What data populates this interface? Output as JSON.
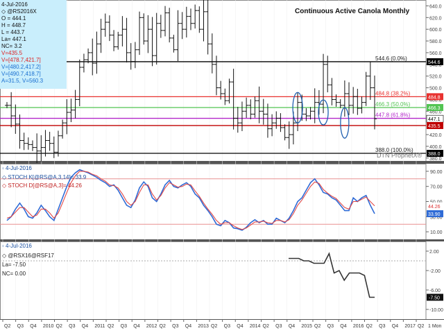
{
  "title": "Continuous Active Canola Monthly",
  "watermark": "DTN ProphetX®",
  "corner_label": "1 Mon",
  "info_panel": {
    "date": "4-Jul-2016",
    "symbol": "◇ @RS2016X",
    "lines": [
      "O = 444.1",
      "H = 448.7",
      "L = 443.7",
      "La= 447.1",
      "NC= 3.2",
      "V=435.5",
      "V=[478.7,421.7]",
      "V=[480.2,417.2]",
      "V=[490.7,418.7]",
      "A=31.5, V=560.3"
    ]
  },
  "chart_data": [
    {
      "type": "ohlc",
      "panel": "price",
      "title": "Continuous Active Canola Monthly",
      "x_ticks": [
        "Q2",
        "Q3",
        "Q4",
        "2010",
        "Q2",
        "Q3",
        "Q4",
        "2011",
        "Q2",
        "Q3",
        "Q4",
        "2012",
        "Q2",
        "Q3",
        "Q4",
        "2013",
        "Q2",
        "Q3",
        "Q4",
        "2014",
        "Q2",
        "Q3",
        "Q4",
        "2015",
        "Q2",
        "Q3",
        "Q4",
        "2016",
        "Q2",
        "Q3",
        "Q4",
        "2017",
        "Q2"
      ],
      "y_ticks": [
        640,
        620,
        600,
        580,
        560,
        540,
        520,
        500,
        480,
        460,
        420,
        400,
        380
      ],
      "ylim": [
        375,
        650
      ],
      "close_approx": [
        470,
        452,
        438,
        410,
        405,
        403,
        398,
        392,
        398,
        410,
        405,
        390,
        418,
        440,
        458,
        462,
        480,
        535,
        548,
        560,
        542,
        575,
        600,
        612,
        590,
        570,
        590,
        600,
        560,
        545,
        565,
        620,
        580,
        600,
        555,
        610,
        598,
        628,
        585,
        565,
        610,
        600,
        622,
        610,
        632,
        600,
        630,
        575,
        540,
        500,
        490,
        478,
        510,
        448,
        440,
        460,
        470,
        455,
        478,
        460,
        455,
        430,
        440,
        448,
        432,
        415,
        420,
        440,
        475,
        455,
        452,
        460,
        475,
        472,
        540,
        505,
        480,
        475,
        470,
        490,
        470,
        485,
        465,
        475,
        520,
        500,
        447
      ],
      "fib_levels": [
        {
          "value": 544.6,
          "label": "544.6 (0.0%)",
          "color": "#000000"
        },
        {
          "value": 484.8,
          "label": "484.8 (38.2%)",
          "color": "#e8312f"
        },
        {
          "value": 466.3,
          "label": "466.3 (50.0%)",
          "color": "#52c452"
        },
        {
          "value": 447.8,
          "label": "447.8 (61.8%)",
          "color": "#b226c9"
        },
        {
          "value": 388.0,
          "label": "388.0 (100.0%)",
          "color": "#000000"
        }
      ],
      "horizontal_lines": [
        {
          "value": 435.5,
          "color": "#c00000"
        }
      ],
      "price_labels": [
        {
          "value": 544.6,
          "text": "544.6",
          "bg": "#000000",
          "fg": "#ffffff"
        },
        {
          "value": 484.8,
          "text": "484.8",
          "bg": "#e8312f",
          "fg": "#ffffff"
        },
        {
          "value": 466.3,
          "text": "466.3",
          "bg": "#52c452",
          "fg": "#ffffff"
        },
        {
          "value": 447.1,
          "text": "447.1",
          "bg": "#ffffff",
          "fg": "#000000"
        },
        {
          "value": 435.5,
          "text": "435.5",
          "bg": "#c00000",
          "fg": "#ffffff"
        },
        {
          "value": 388.0,
          "text": "388.0",
          "bg": "#000000",
          "fg": "#ffffff"
        }
      ]
    },
    {
      "type": "line",
      "panel": "stochastic",
      "date": "4-Jul-2016",
      "legend": [
        "◇ STOCH K[@RS@A,3,14]= 33.9",
        "◇ STOCH D[@RS@A,3]= 44.26"
      ],
      "y_ticks": [
        90,
        70,
        50,
        30,
        10
      ],
      "ylim": [
        0,
        100
      ],
      "reference_lines": [
        80,
        20
      ],
      "series": [
        {
          "name": "STOCH K",
          "color": "#2f6bd6",
          "values": [
            25,
            30,
            40,
            48,
            40,
            30,
            28,
            35,
            45,
            38,
            30,
            25,
            40,
            55,
            70,
            82,
            88,
            92,
            90,
            88,
            85,
            82,
            78,
            75,
            70,
            72,
            65,
            55,
            45,
            42,
            52,
            68,
            76,
            70,
            55,
            50,
            60,
            72,
            78,
            70,
            68,
            72,
            75,
            70,
            60,
            55,
            45,
            38,
            30,
            20,
            18,
            25,
            22,
            15,
            14,
            12,
            16,
            22,
            26,
            22,
            25,
            20,
            20,
            28,
            25,
            22,
            28,
            38,
            50,
            55,
            65,
            75,
            80,
            72,
            62,
            60,
            55,
            52,
            45,
            38,
            38,
            55,
            50,
            55,
            58,
            45,
            33.9
          ]
        },
        {
          "name": "STOCH D",
          "color": "#e04848",
          "values": [
            28,
            30,
            36,
            42,
            42,
            36,
            30,
            32,
            40,
            40,
            35,
            28,
            35,
            48,
            62,
            75,
            84,
            90,
            90,
            89,
            86,
            84,
            80,
            77,
            72,
            71,
            68,
            60,
            50,
            45,
            50,
            62,
            72,
            72,
            60,
            52,
            58,
            68,
            75,
            72,
            69,
            70,
            73,
            72,
            64,
            57,
            48,
            40,
            33,
            25,
            20,
            22,
            22,
            18,
            15,
            13,
            15,
            19,
            23,
            23,
            24,
            22,
            21,
            25,
            25,
            23,
            26,
            34,
            45,
            52,
            61,
            70,
            76,
            74,
            66,
            61,
            57,
            54,
            48,
            42,
            40,
            50,
            50,
            53,
            56,
            50,
            44.26
          ]
        }
      ]
    },
    {
      "type": "line",
      "panel": "spread",
      "date": "4-Jul-2016",
      "legend": [
        "◇ @RSX16@RSF17"
      ],
      "info": [
        "La= -7.50",
        "NC= 0.00"
      ],
      "y_ticks": [
        2.0,
        -2.0,
        -6.0,
        -10.0
      ],
      "ylim": [
        -12,
        4
      ],
      "reference_lines": [
        0
      ],
      "last_value": "-7.50",
      "series": [
        {
          "name": "@RSX16@RSF17",
          "color": "#333333",
          "values": [
            0.5,
            0.5,
            0.5,
            0,
            0,
            -0.5,
            -0.5,
            -0.5,
            1.5,
            -2.5,
            -2,
            -4,
            -2.5,
            -2.5,
            -2.5,
            -3,
            -7.5,
            -7.5
          ]
        }
      ]
    }
  ]
}
